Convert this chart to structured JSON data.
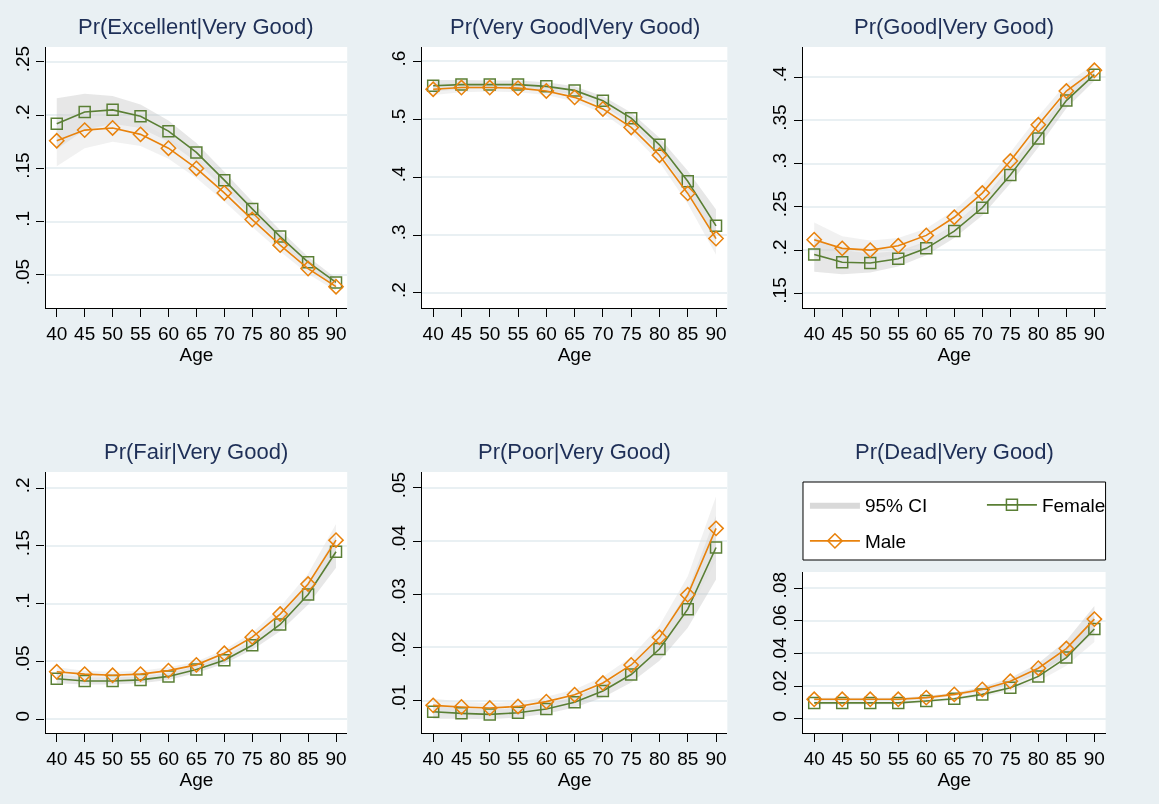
{
  "chart_data": [
    {
      "type": "line",
      "title": "Pr(Excellent|Very Good)",
      "xlabel": "Age",
      "x": [
        40,
        45,
        50,
        55,
        60,
        65,
        70,
        75,
        80,
        85,
        90
      ],
      "xlim": [
        38,
        92
      ],
      "xticks": [
        40,
        45,
        50,
        55,
        60,
        65,
        70,
        75,
        80,
        85,
        90
      ],
      "ylim": [
        0.019,
        0.264
      ],
      "yticks": [
        {
          "value": 0.05,
          "label": ".05"
        },
        {
          "value": 0.1,
          "label": ".1"
        },
        {
          "value": 0.15,
          "label": ".15"
        },
        {
          "value": 0.2,
          "label": ".2"
        },
        {
          "value": 0.25,
          "label": ".25"
        }
      ],
      "grid": "y",
      "series": [
        {
          "color": "#5a7f35",
          "marker": "square",
          "values": [
            0.192,
            0.203,
            0.205,
            0.199,
            0.185,
            0.165,
            0.139,
            0.112,
            0.086,
            0.062,
            0.043
          ],
          "lower": [
            0.168,
            0.186,
            0.192,
            0.188,
            0.175,
            0.156,
            0.131,
            0.105,
            0.08,
            0.057,
            0.039
          ],
          "upper": [
            0.216,
            0.22,
            0.218,
            0.21,
            0.195,
            0.174,
            0.147,
            0.119,
            0.092,
            0.067,
            0.047
          ]
        },
        {
          "color": "#e8820c",
          "marker": "diamond",
          "values": [
            0.176,
            0.186,
            0.188,
            0.182,
            0.169,
            0.15,
            0.127,
            0.102,
            0.078,
            0.056,
            0.039
          ],
          "lower": [
            0.152,
            0.169,
            0.175,
            0.171,
            0.159,
            0.141,
            0.119,
            0.095,
            0.072,
            0.051,
            0.035
          ],
          "upper": [
            0.2,
            0.203,
            0.201,
            0.193,
            0.179,
            0.159,
            0.135,
            0.109,
            0.084,
            0.061,
            0.043
          ]
        }
      ]
    },
    {
      "type": "line",
      "title": "Pr(Very Good|Very Good)",
      "xlabel": "Age",
      "x": [
        40,
        45,
        50,
        55,
        60,
        65,
        70,
        75,
        80,
        85,
        90
      ],
      "xlim": [
        38,
        92
      ],
      "xticks": [
        40,
        45,
        50,
        55,
        60,
        65,
        70,
        75,
        80,
        85,
        90
      ],
      "ylim": [
        0.174,
        0.625
      ],
      "yticks": [
        {
          "value": 0.2,
          "label": ".2"
        },
        {
          "value": 0.3,
          "label": ".3"
        },
        {
          "value": 0.4,
          "label": ".4"
        },
        {
          "value": 0.5,
          "label": ".5"
        },
        {
          "value": 0.6,
          "label": ".6"
        }
      ],
      "grid": "y",
      "series": [
        {
          "color": "#5a7f35",
          "marker": "square",
          "values": [
            0.558,
            0.56,
            0.56,
            0.56,
            0.557,
            0.55,
            0.532,
            0.502,
            0.456,
            0.393,
            0.316
          ],
          "lower": [
            0.548,
            0.552,
            0.553,
            0.553,
            0.55,
            0.543,
            0.524,
            0.492,
            0.444,
            0.375,
            0.288
          ],
          "upper": [
            0.568,
            0.568,
            0.567,
            0.567,
            0.564,
            0.557,
            0.54,
            0.512,
            0.468,
            0.411,
            0.344
          ]
        },
        {
          "color": "#e8820c",
          "marker": "diamond",
          "values": [
            0.552,
            0.555,
            0.555,
            0.554,
            0.549,
            0.538,
            0.518,
            0.486,
            0.438,
            0.372,
            0.294
          ],
          "lower": [
            0.542,
            0.547,
            0.548,
            0.547,
            0.542,
            0.531,
            0.51,
            0.476,
            0.426,
            0.354,
            0.266
          ],
          "upper": [
            0.562,
            0.563,
            0.562,
            0.561,
            0.556,
            0.545,
            0.526,
            0.496,
            0.45,
            0.39,
            0.322
          ]
        }
      ]
    },
    {
      "type": "line",
      "title": "Pr(Good|Very Good)",
      "xlabel": "Age",
      "x": [
        40,
        45,
        50,
        55,
        60,
        65,
        70,
        75,
        80,
        85,
        90
      ],
      "xlim": [
        38,
        92
      ],
      "xticks": [
        40,
        45,
        50,
        55,
        60,
        65,
        70,
        75,
        80,
        85,
        90
      ],
      "ylim": [
        0.133,
        0.435
      ],
      "yticks": [
        {
          "value": 0.15,
          "label": ".15"
        },
        {
          "value": 0.2,
          "label": ".2"
        },
        {
          "value": 0.25,
          "label": ".25"
        },
        {
          "value": 0.3,
          "label": ".3"
        },
        {
          "value": 0.35,
          "label": ".35"
        },
        {
          "value": 0.4,
          "label": ".4"
        }
      ],
      "grid": "y",
      "series": [
        {
          "color": "#5a7f35",
          "marker": "square",
          "values": [
            0.195,
            0.186,
            0.185,
            0.19,
            0.202,
            0.222,
            0.249,
            0.287,
            0.329,
            0.373,
            0.403
          ],
          "lower": [
            0.175,
            0.172,
            0.174,
            0.181,
            0.194,
            0.214,
            0.24,
            0.277,
            0.319,
            0.364,
            0.396
          ],
          "upper": [
            0.215,
            0.2,
            0.196,
            0.199,
            0.21,
            0.23,
            0.258,
            0.297,
            0.339,
            0.382,
            0.41
          ]
        },
        {
          "color": "#e8820c",
          "marker": "diamond",
          "values": [
            0.212,
            0.202,
            0.2,
            0.205,
            0.217,
            0.238,
            0.266,
            0.303,
            0.345,
            0.384,
            0.408
          ],
          "lower": [
            0.192,
            0.188,
            0.189,
            0.196,
            0.209,
            0.23,
            0.257,
            0.293,
            0.335,
            0.375,
            0.401
          ],
          "upper": [
            0.232,
            0.216,
            0.211,
            0.214,
            0.225,
            0.246,
            0.275,
            0.313,
            0.355,
            0.393,
            0.415
          ]
        }
      ]
    },
    {
      "type": "line",
      "title": "Pr(Fair|Very Good)",
      "xlabel": "Age",
      "x": [
        40,
        45,
        50,
        55,
        60,
        65,
        70,
        75,
        80,
        85,
        90
      ],
      "xlim": [
        38,
        92
      ],
      "xticks": [
        40,
        45,
        50,
        55,
        60,
        65,
        70,
        75,
        80,
        85,
        90
      ],
      "ylim": [
        -0.012,
        0.214
      ],
      "yticks": [
        0,
        {
          "value": 0.05,
          "label": ".05"
        },
        {
          "value": 0.1,
          "label": ".1"
        },
        {
          "value": 0.15,
          "label": ".15"
        },
        {
          "value": 0.2,
          "label": ".2"
        }
      ],
      "grid": "y",
      "series": [
        {
          "color": "#5a7f35",
          "marker": "square",
          "values": [
            0.035,
            0.033,
            0.033,
            0.034,
            0.037,
            0.043,
            0.051,
            0.064,
            0.082,
            0.108,
            0.145
          ],
          "lower": [
            0.031,
            0.03,
            0.03,
            0.031,
            0.034,
            0.04,
            0.048,
            0.06,
            0.076,
            0.099,
            0.131
          ],
          "upper": [
            0.039,
            0.036,
            0.036,
            0.037,
            0.04,
            0.046,
            0.054,
            0.068,
            0.088,
            0.117,
            0.159
          ]
        },
        {
          "color": "#e8820c",
          "marker": "diamond",
          "values": [
            0.041,
            0.039,
            0.038,
            0.039,
            0.042,
            0.047,
            0.057,
            0.071,
            0.091,
            0.117,
            0.155
          ],
          "lower": [
            0.037,
            0.036,
            0.035,
            0.036,
            0.039,
            0.044,
            0.054,
            0.067,
            0.085,
            0.108,
            0.141
          ],
          "upper": [
            0.045,
            0.042,
            0.041,
            0.042,
            0.045,
            0.05,
            0.06,
            0.075,
            0.097,
            0.126,
            0.169
          ]
        }
      ]
    },
    {
      "type": "line",
      "title": "Pr(Poor|Very Good)",
      "xlabel": "Age",
      "x": [
        40,
        45,
        50,
        55,
        60,
        65,
        70,
        75,
        80,
        85,
        90
      ],
      "xlim": [
        38,
        92
      ],
      "xticks": [
        40,
        45,
        50,
        55,
        60,
        65,
        70,
        75,
        80,
        85,
        90
      ],
      "ylim": [
        0.0039,
        0.053
      ],
      "yticks": [
        {
          "value": 0.01,
          "label": ".01"
        },
        {
          "value": 0.02,
          "label": ".02"
        },
        {
          "value": 0.03,
          "label": ".03"
        },
        {
          "value": 0.04,
          "label": ".04"
        },
        {
          "value": 0.05,
          "label": ".05"
        }
      ],
      "grid": "y",
      "series": [
        {
          "color": "#5a7f35",
          "marker": "square",
          "values": [
            0.0079,
            0.0076,
            0.0074,
            0.0077,
            0.0084,
            0.0097,
            0.0118,
            0.0149,
            0.0197,
            0.0272,
            0.0388
          ],
          "lower": [
            0.0066,
            0.0066,
            0.0065,
            0.0068,
            0.0075,
            0.0087,
            0.0106,
            0.0134,
            0.0175,
            0.0237,
            0.0328
          ],
          "upper": [
            0.0092,
            0.0086,
            0.0083,
            0.0086,
            0.0093,
            0.0107,
            0.013,
            0.0164,
            0.0219,
            0.0307,
            0.0448
          ]
        },
        {
          "color": "#e8820c",
          "marker": "diamond",
          "values": [
            0.0091,
            0.0088,
            0.0086,
            0.0089,
            0.0098,
            0.0111,
            0.0133,
            0.0167,
            0.0219,
            0.0299,
            0.0424
          ],
          "lower": [
            0.0078,
            0.0078,
            0.0077,
            0.008,
            0.0089,
            0.0101,
            0.0121,
            0.0152,
            0.0197,
            0.0264,
            0.0364
          ],
          "upper": [
            0.0104,
            0.0098,
            0.0095,
            0.0098,
            0.0107,
            0.0121,
            0.0145,
            0.0182,
            0.0241,
            0.0334,
            0.0484
          ]
        }
      ]
    },
    {
      "type": "line",
      "title": "Pr(Dead|Very Good)",
      "xlabel": "Age",
      "x": [
        40,
        45,
        50,
        55,
        60,
        65,
        70,
        75,
        80,
        85,
        90
      ],
      "xlim": [
        38,
        92
      ],
      "xticks": [
        40,
        45,
        50,
        55,
        60,
        65,
        70,
        75,
        80,
        85,
        90
      ],
      "ylim": [
        -0.0086,
        0.0898
      ],
      "yticks": [
        0,
        {
          "value": 0.02,
          "label": ".02"
        },
        {
          "value": 0.04,
          "label": ".04"
        },
        {
          "value": 0.06,
          "label": ".06"
        },
        {
          "value": 0.08,
          "label": ".08"
        }
      ],
      "grid": "y",
      "legend": "top",
      "series": [
        {
          "name": "95% CI",
          "type": "area",
          "color": "#d9d9d9",
          "values": [
            null,
            null,
            null,
            null,
            null,
            null,
            null,
            null,
            null,
            null,
            null
          ]
        },
        {
          "name": "Female",
          "color": "#5a7f35",
          "marker": "square",
          "values": [
            0.0098,
            0.0098,
            0.0098,
            0.0098,
            0.011,
            0.0123,
            0.015,
            0.019,
            0.026,
            0.0375,
            0.055
          ],
          "lower": [
            0.0088,
            0.0088,
            0.0088,
            0.0088,
            0.01,
            0.0113,
            0.0135,
            0.017,
            0.023,
            0.0325,
            0.047
          ],
          "upper": [
            0.0108,
            0.0108,
            0.0108,
            0.0108,
            0.012,
            0.0133,
            0.0165,
            0.021,
            0.029,
            0.0425,
            0.063
          ]
        },
        {
          "name": "Male",
          "color": "#e8820c",
          "marker": "diamond",
          "values": [
            0.012,
            0.012,
            0.012,
            0.012,
            0.013,
            0.015,
            0.018,
            0.023,
            0.031,
            0.043,
            0.061
          ],
          "lower": [
            0.011,
            0.011,
            0.011,
            0.011,
            0.012,
            0.014,
            0.0165,
            0.021,
            0.028,
            0.038,
            0.053
          ],
          "upper": [
            0.013,
            0.013,
            0.013,
            0.013,
            0.014,
            0.016,
            0.0195,
            0.025,
            0.034,
            0.048,
            0.069
          ]
        }
      ]
    }
  ]
}
